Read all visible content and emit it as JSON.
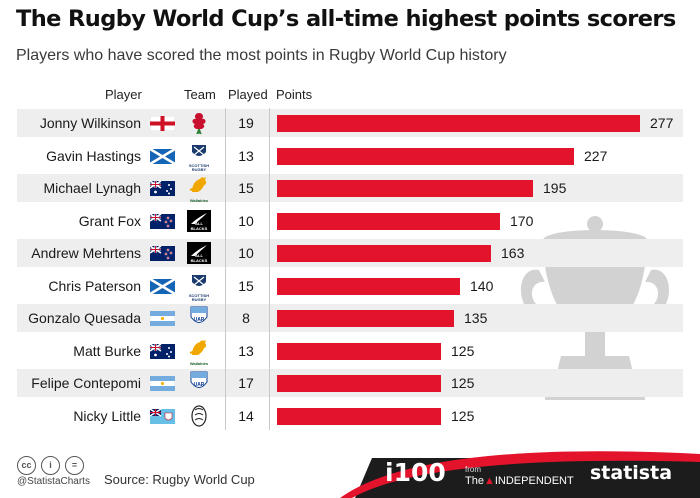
{
  "title": "The Rugby World Cup’s all-time highest points scorers",
  "subtitle": "Players who have scored the most points in Rugby World Cup history",
  "headers": {
    "player": "Player",
    "team": "Team",
    "played": "Played",
    "points": "Points"
  },
  "chart_data": {
    "type": "bar",
    "orientation": "horizontal",
    "title": "The Rugby World Cup’s all-time highest points scorers",
    "subtitle": "Players who have scored the most points in Rugby World Cup history",
    "categories": [
      "Jonny Wilkinson",
      "Gavin Hastings",
      "Michael Lynagh",
      "Grant Fox",
      "Andrew Mehrtens",
      "Chris Paterson",
      "Gonzalo Quesada",
      "Matt Burke",
      "Felipe Contepomi",
      "Nicky Little"
    ],
    "teams": [
      "England",
      "Scotland",
      "Australia",
      "New Zealand",
      "New Zealand",
      "Scotland",
      "Argentina",
      "Australia",
      "Argentina",
      "Fiji"
    ],
    "played": [
      19,
      13,
      15,
      10,
      10,
      15,
      8,
      13,
      17,
      14
    ],
    "values": [
      277,
      227,
      195,
      170,
      163,
      140,
      135,
      125,
      125,
      125
    ],
    "xlim": [
      0,
      277
    ],
    "grid": false,
    "legend": "none",
    "bar_color": "#e3132b"
  },
  "footer": {
    "handle": "@StatistaCharts",
    "source": "Source: Rugby World Cup",
    "brand_i100": "i100",
    "from": "from",
    "the": "The",
    "independent": "INDEPENDENT",
    "statista": "statista"
  },
  "logo_text": {
    "scotland": "SCOTTISH RUGBY",
    "wallabies": "Wallabies",
    "allblacks": "ALL BLACKS",
    "uar": "UAR"
  },
  "colors": {
    "accent": "#e3132b",
    "band": "#eeeeee",
    "trophy": "#d0d0d0",
    "footer_dark": "#1c1c1c"
  }
}
